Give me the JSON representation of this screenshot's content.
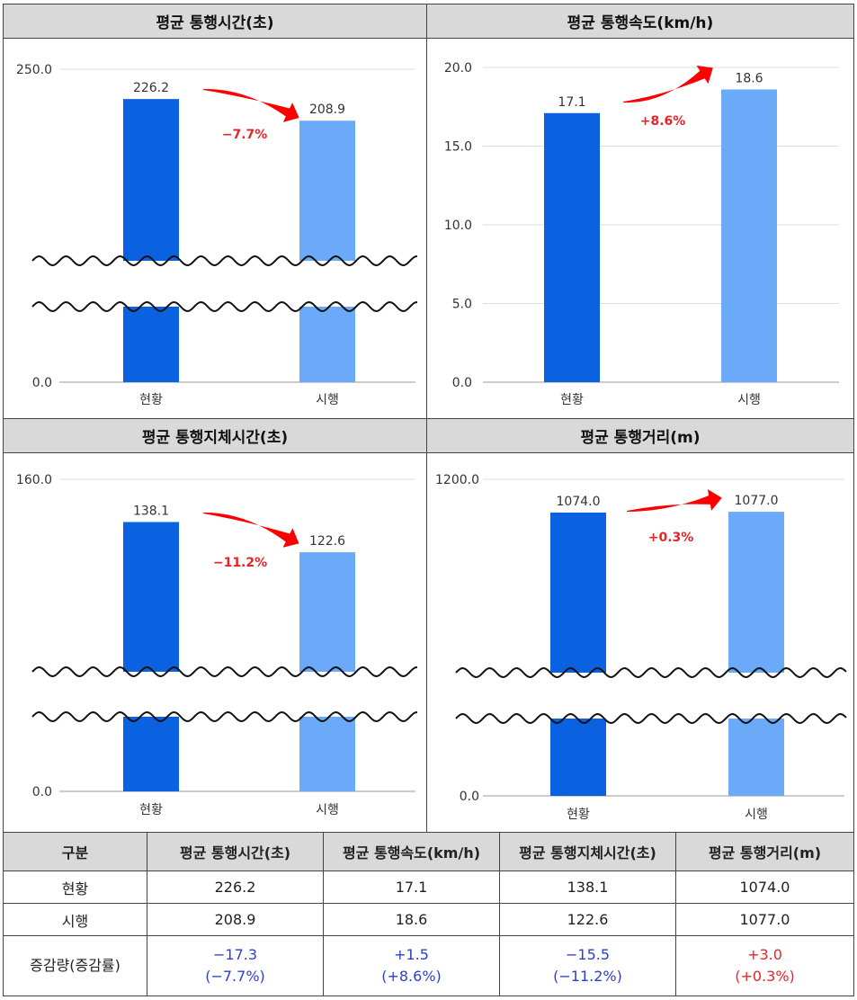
{
  "colors": {
    "current": "#0a62e0",
    "trial": "#6aaaf8",
    "arrow": "#ff0000",
    "decrease_text": "#2a3fcf",
    "increase_text": "#e8232a"
  },
  "chart_data": [
    {
      "type": "bar",
      "title": "평균 통행시간(초)",
      "categories": [
        "현황",
        "시행"
      ],
      "values": [
        226.2,
        208.9
      ],
      "value_labels": [
        "226.2",
        "208.9"
      ],
      "ticks": [
        "250.0",
        "0.0"
      ],
      "ylim": [
        0,
        250
      ],
      "axis_break": true,
      "change_label": "−7.7%"
    },
    {
      "type": "bar",
      "title": "평균 통행속도(km/h)",
      "categories": [
        "현황",
        "시행"
      ],
      "values": [
        17.1,
        18.6
      ],
      "value_labels": [
        "17.1",
        "18.6"
      ],
      "ticks": [
        "20.0",
        "15.0",
        "10.0",
        "5.0",
        "0.0"
      ],
      "ylim": [
        0,
        20
      ],
      "axis_break": false,
      "change_label": "+8.6%"
    },
    {
      "type": "bar",
      "title": "평균 통행지체시간(초)",
      "categories": [
        "현황",
        "시행"
      ],
      "values": [
        138.1,
        122.6
      ],
      "value_labels": [
        "138.1",
        "122.6"
      ],
      "ticks": [
        "160.0",
        "0.0"
      ],
      "ylim": [
        0,
        160
      ],
      "axis_break": true,
      "change_label": "−11.2%"
    },
    {
      "type": "bar",
      "title": "평균 통행거리(m)",
      "categories": [
        "현황",
        "시행"
      ],
      "values": [
        1074.0,
        1077.0
      ],
      "value_labels": [
        "1074.0",
        "1077.0"
      ],
      "ticks": [
        "1200.0",
        "0.0"
      ],
      "ylim": [
        0,
        1200
      ],
      "axis_break": true,
      "change_label": "+0.3%"
    }
  ],
  "table": {
    "headers": [
      "구분",
      "평균 통행시간(초)",
      "평균 통행속도(km/h)",
      "평균 통행지체시간(초)",
      "평균 통행거리(m)"
    ],
    "rows": [
      [
        "현황",
        "226.2",
        "17.1",
        "138.1",
        "1074.0"
      ],
      [
        "시행",
        "208.9",
        "18.6",
        "122.6",
        "1077.0"
      ]
    ],
    "change_row": {
      "label": "증감량(증감률)",
      "cells": [
        {
          "amount": "−17.3",
          "rate": "(−7.7%)"
        },
        {
          "amount": "+1.5",
          "rate": "(+8.6%)"
        },
        {
          "amount": "−15.5",
          "rate": "(−11.2%)"
        },
        {
          "amount": "+3.0",
          "rate": "(+0.3%)"
        }
      ]
    }
  }
}
